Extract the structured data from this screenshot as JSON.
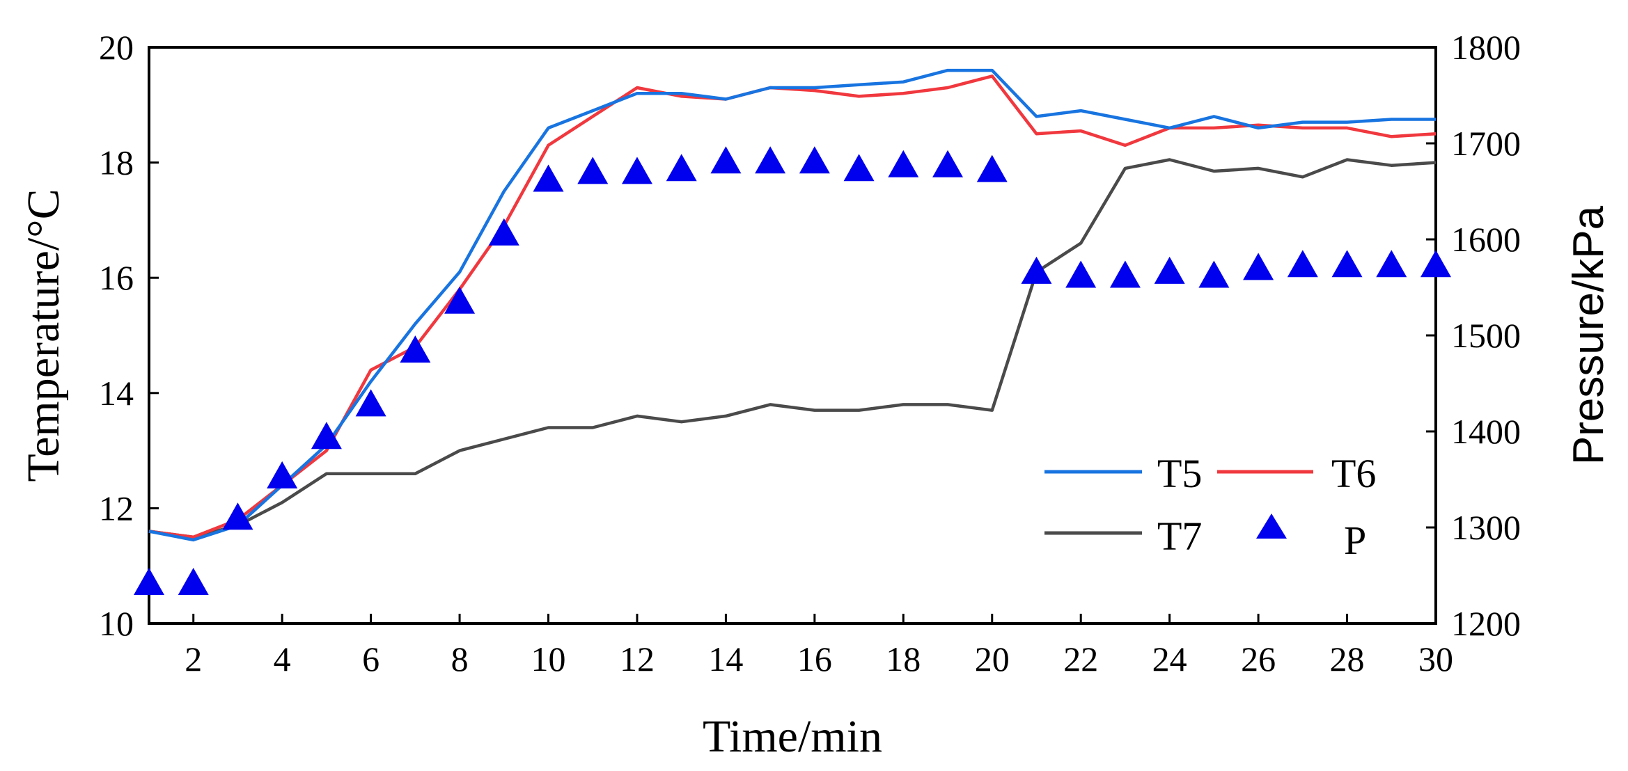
{
  "chart_data": {
    "type": "line",
    "xlabel": "Time/min",
    "ylabel_left": "Temperature/°C",
    "ylabel_right": "Pressure/kPa",
    "xlim": [
      1,
      30
    ],
    "ylim_left": [
      10,
      20
    ],
    "ylim_right": [
      1200,
      1800
    ],
    "x_ticks": [
      "2",
      "4",
      "6",
      "8",
      "10",
      "12",
      "14",
      "16",
      "18",
      "20",
      "22",
      "24",
      "26",
      "28",
      "30"
    ],
    "y_ticks_left": [
      "10",
      "12",
      "14",
      "16",
      "18",
      "20"
    ],
    "y_ticks_right": [
      "1200",
      "1300",
      "1400",
      "1500",
      "1600",
      "1700",
      "1800"
    ],
    "x": [
      1,
      2,
      3,
      4,
      5,
      6,
      7,
      8,
      9,
      10,
      11,
      12,
      13,
      14,
      15,
      16,
      17,
      18,
      19,
      20,
      21,
      22,
      23,
      24,
      25,
      26,
      27,
      28,
      29,
      30
    ],
    "series": [
      {
        "name": "T5",
        "axis": "left",
        "style": "line",
        "color": "#1874e0",
        "values": [
          11.6,
          11.45,
          11.7,
          12.4,
          13.1,
          14.2,
          15.2,
          16.1,
          17.5,
          18.6,
          18.9,
          19.2,
          19.2,
          19.1,
          19.3,
          19.3,
          19.35,
          19.4,
          19.6,
          19.6,
          18.8,
          18.9,
          18.75,
          18.6,
          18.8,
          18.6,
          18.7,
          18.7,
          18.75,
          18.75
        ]
      },
      {
        "name": "T6",
        "axis": "left",
        "style": "line",
        "color": "#f0383e",
        "values": [
          11.6,
          11.5,
          11.8,
          12.4,
          13.0,
          14.4,
          14.8,
          15.8,
          16.9,
          18.3,
          18.8,
          19.3,
          19.15,
          19.1,
          19.3,
          19.25,
          19.15,
          19.2,
          19.3,
          19.5,
          18.5,
          18.55,
          18.3,
          18.6,
          18.6,
          18.65,
          18.6,
          18.6,
          18.45,
          18.5
        ]
      },
      {
        "name": "T7",
        "axis": "left",
        "style": "line",
        "color": "#4a4a4a",
        "values": [
          11.6,
          11.5,
          11.7,
          12.1,
          12.6,
          12.6,
          12.6,
          13.0,
          13.2,
          13.4,
          13.4,
          13.6,
          13.5,
          13.6,
          13.8,
          13.7,
          13.7,
          13.8,
          13.8,
          13.7,
          16.1,
          16.6,
          17.9,
          18.05,
          17.85,
          17.9,
          17.75,
          18.05,
          17.95,
          18.0
        ]
      },
      {
        "name": "P",
        "axis": "right",
        "style": "marker",
        "marker": "triangle",
        "color": "#0000ee",
        "values": [
          1242,
          1242,
          1310,
          1353,
          1394,
          1428,
          1484,
          1535,
          1606,
          1662,
          1670,
          1670,
          1673,
          1681,
          1681,
          1681,
          1673,
          1677,
          1677,
          1672,
          1566,
          1562,
          1562,
          1566,
          1562,
          1570,
          1573,
          1573,
          1573,
          1573
        ]
      }
    ],
    "legend_position": "lower-right"
  }
}
